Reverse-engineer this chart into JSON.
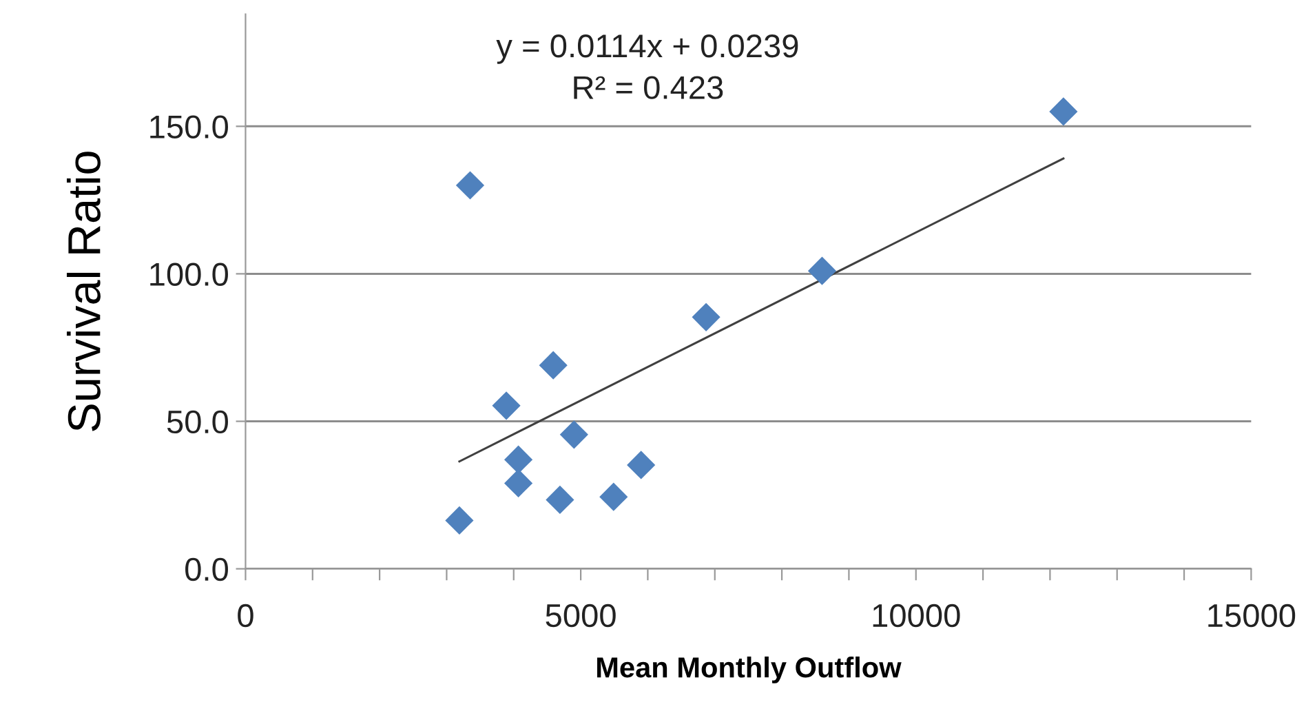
{
  "chart_data": {
    "type": "scatter",
    "xlabel": "Mean Monthly Outflow",
    "ylabel": "Survival Ratio",
    "annotations": [
      "y = 0.0114x + 0.0239",
      "R² = 0.423"
    ],
    "series": [
      {
        "color": "#4f81bd",
        "marker": "diamond",
        "x": [
          3190,
          3350,
          3890,
          4070,
          4070,
          4590,
          4690,
          4900,
          5490,
          5900,
          6870,
          8600,
          12200
        ],
        "values": [
          16.4,
          130,
          55.3,
          37,
          29,
          69,
          23.4,
          45.5,
          24.4,
          35.2,
          85.3,
          101,
          155
        ]
      },
      {
        "type": "line",
        "color": "#404040",
        "marker": "none",
        "line_style": "solid",
        "x": [
          3190,
          12200
        ],
        "values": [
          36.4,
          139.1
        ]
      }
    ],
    "xlim": [
      0,
      15000
    ],
    "xticks": [
      0,
      {
        "value": 1000,
        "label": null
      },
      {
        "value": 2000,
        "label": null
      },
      {
        "value": 3000,
        "label": null
      },
      {
        "value": 4000,
        "label": null
      },
      5000,
      {
        "value": 6000,
        "label": null
      },
      {
        "value": 7000,
        "label": null
      },
      {
        "value": 8000,
        "label": null
      },
      {
        "value": 9000,
        "label": null
      },
      10000,
      {
        "value": 11000,
        "label": null
      },
      {
        "value": 12000,
        "label": null
      },
      {
        "value": 13000,
        "label": null
      },
      {
        "value": 14000,
        "label": null
      },
      15000
    ],
    "ylim": [
      0,
      188
    ],
    "yticks": [
      {
        "value": 0,
        "label": "0.0"
      },
      {
        "value": 50,
        "label": "50.0"
      },
      {
        "value": 100,
        "label": "100.0"
      },
      {
        "value": 150,
        "label": "150.0"
      }
    ],
    "grid": "y",
    "legend": false
  }
}
